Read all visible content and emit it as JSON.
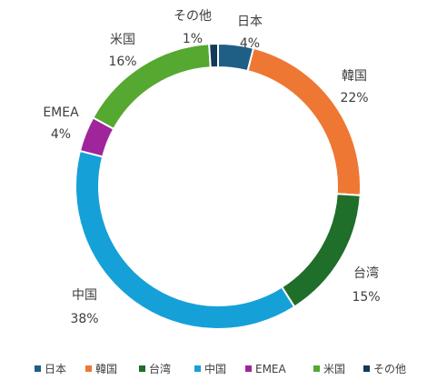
{
  "chart_data": {
    "type": "pie",
    "variant": "donut",
    "title": "",
    "categories": [
      "日本",
      "韓国",
      "台湾",
      "中国",
      "EMEA",
      "米国",
      "その他"
    ],
    "values": [
      4,
      22,
      15,
      38,
      4,
      16,
      1
    ],
    "labels": [
      "4%",
      "22%",
      "15%",
      "38%",
      "4%",
      "16%",
      "1%"
    ],
    "colors": [
      "#1f5f86",
      "#ee7733",
      "#1f6e2a",
      "#16a0d8",
      "#a0259a",
      "#55a830",
      "#133a56"
    ],
    "legend_position": "bottom"
  }
}
